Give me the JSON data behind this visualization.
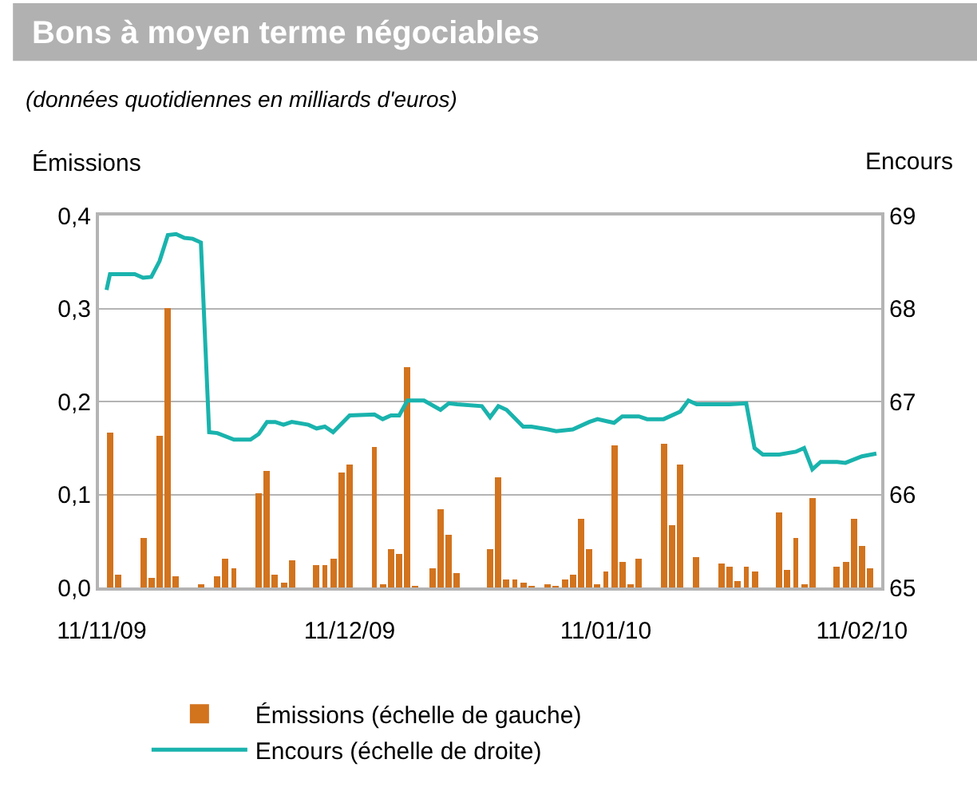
{
  "chart_data": {
    "type": "bar",
    "title": "Bons à moyen terme négociables",
    "subtitle": "(données quotidiennes en milliards d'euros)",
    "ylabel": "Émissions",
    "y2label": "Encours",
    "xlim": [
      "2009-11-10T16:00",
      "2010-02-13T08:00"
    ],
    "xticks": [
      {
        "value": "2009-11-11",
        "label": "11/11/09"
      },
      {
        "value": "2009-12-11",
        "label": "11/12/09"
      },
      {
        "value": "2010-01-11",
        "label": "11/01/10"
      },
      {
        "value": "2010-02-11",
        "label": "11/02/10"
      }
    ],
    "ylim": [
      0,
      0.4
    ],
    "yticks": [
      {
        "value": 0,
        "label": "0,0"
      },
      {
        "value": 0.1,
        "label": "0,1"
      },
      {
        "value": 0.2,
        "label": "0,2"
      },
      {
        "value": 0.3,
        "label": "0,3"
      },
      {
        "value": 0.4,
        "label": "0,4"
      }
    ],
    "y2lim": [
      65,
      69
    ],
    "y2ticks": [
      65,
      66,
      67,
      68,
      69
    ],
    "grid": "y",
    "legend": "bottom",
    "series": [
      {
        "name": "Émissions (échelle de gauche)",
        "color": "#d2731e",
        "x": [
          "2009-11-12",
          "2009-11-13",
          "2009-11-16",
          "2009-11-17",
          "2009-11-18",
          "2009-11-19",
          "2009-11-20",
          "2009-11-23",
          "2009-11-25",
          "2009-11-26",
          "2009-11-27",
          "2009-11-30",
          "2009-12-01",
          "2009-12-02",
          "2009-12-03",
          "2009-12-04",
          "2009-12-07",
          "2009-12-08",
          "2009-12-09",
          "2009-12-10",
          "2009-12-11",
          "2009-12-14",
          "2009-12-15",
          "2009-12-16",
          "2009-12-17",
          "2009-12-18",
          "2009-12-19",
          "2009-12-21",
          "2009-12-22",
          "2009-12-23",
          "2009-12-24",
          "2009-12-28",
          "2009-12-29",
          "2009-12-30",
          "2009-12-31",
          "2010-01-01",
          "2010-01-02",
          "2010-01-04",
          "2010-01-05",
          "2010-01-06",
          "2010-01-07",
          "2010-01-08",
          "2010-01-09",
          "2010-01-10",
          "2010-01-11",
          "2010-01-12",
          "2010-01-13",
          "2010-01-14",
          "2010-01-15",
          "2010-01-18",
          "2010-01-19",
          "2010-01-20",
          "2010-01-22",
          "2010-01-25",
          "2010-01-26",
          "2010-01-27",
          "2010-01-28",
          "2010-01-29",
          "2010-02-01",
          "2010-02-02",
          "2010-02-03",
          "2010-02-04",
          "2010-02-05",
          "2010-02-08",
          "2010-02-09",
          "2010-02-10",
          "2010-02-11",
          "2010-02-12"
        ],
        "values": [
          0.166,
          0.014,
          0.054,
          0.011,
          0.163,
          0.3,
          0.012,
          0.003,
          0.012,
          0.031,
          0.021,
          0.102,
          0.126,
          0.014,
          0.005,
          0.03,
          0.024,
          0.024,
          0.031,
          0.123,
          0.133,
          0.151,
          0.004,
          0.041,
          0.036,
          0.237,
          0.001,
          0.02,
          0.084,
          0.056,
          0.015,
          0.041,
          0.119,
          0.008,
          0.009,
          0.005,
          0.001,
          0.003,
          0.001,
          0.009,
          0.014,
          0.073,
          0.041,
          0.003,
          0.018,
          0.152,
          0.028,
          0.003,
          0.031,
          0.155,
          0.067,
          0.132,
          0.033,
          0.026,
          0.022,
          0.007,
          0.022,
          0.017,
          0.08,
          0.019,
          0.054,
          0.003,
          0.097,
          0.022,
          0.027,
          0.074,
          0.044,
          0.02
        ]
      },
      {
        "name": "Encours (échelle de droite)",
        "type": "line",
        "axis": "y2",
        "color": "#1ab3ad",
        "x": [
          "2009-11-11T14:00",
          "2009-11-12",
          "2009-11-15",
          "2009-11-16",
          "2009-11-17",
          "2009-11-18",
          "2009-11-19",
          "2009-11-20",
          "2009-11-21",
          "2009-11-22",
          "2009-11-23",
          "2009-11-24",
          "2009-11-25",
          "2009-11-27",
          "2009-11-29",
          "2009-11-30",
          "2009-12-01",
          "2009-12-02",
          "2009-12-03",
          "2009-12-04",
          "2009-12-06",
          "2009-12-07",
          "2009-12-08",
          "2009-12-09",
          "2009-12-11",
          "2009-12-14",
          "2009-12-15",
          "2009-12-16",
          "2009-12-17",
          "2009-12-18",
          "2009-12-20",
          "2009-12-22",
          "2009-12-23",
          "2009-12-24",
          "2009-12-27",
          "2009-12-28",
          "2009-12-29",
          "2009-12-30",
          "2010-01-01",
          "2010-01-02",
          "2010-01-04",
          "2010-01-05",
          "2010-01-07",
          "2010-01-09",
          "2010-01-10",
          "2010-01-12",
          "2010-01-13",
          "2010-01-15",
          "2010-01-16",
          "2010-01-18",
          "2010-01-20",
          "2010-01-21",
          "2010-01-22",
          "2010-01-26",
          "2010-01-28",
          "2010-01-29",
          "2010-01-30",
          "2010-02-01",
          "2010-02-03",
          "2010-02-04",
          "2010-02-05",
          "2010-02-06",
          "2010-02-08",
          "2010-02-09",
          "2010-02-11",
          "2010-02-12T18:00"
        ],
        "values": [
          68.2,
          68.37,
          68.37,
          68.33,
          68.34,
          68.51,
          68.79,
          68.8,
          68.76,
          68.75,
          68.71,
          66.67,
          66.66,
          66.59,
          66.59,
          66.65,
          66.78,
          66.78,
          66.75,
          66.78,
          66.75,
          66.71,
          66.73,
          66.67,
          66.85,
          66.86,
          66.81,
          66.85,
          66.85,
          67.01,
          67.01,
          66.91,
          66.98,
          66.97,
          66.95,
          66.83,
          66.95,
          66.91,
          66.73,
          66.73,
          66.7,
          66.68,
          66.7,
          66.78,
          66.81,
          66.77,
          66.84,
          66.84,
          66.81,
          66.81,
          66.89,
          67.01,
          66.97,
          66.97,
          66.98,
          66.5,
          66.43,
          66.43,
          66.46,
          66.5,
          66.27,
          66.35,
          66.35,
          66.34,
          66.41,
          66.44
        ]
      }
    ]
  }
}
